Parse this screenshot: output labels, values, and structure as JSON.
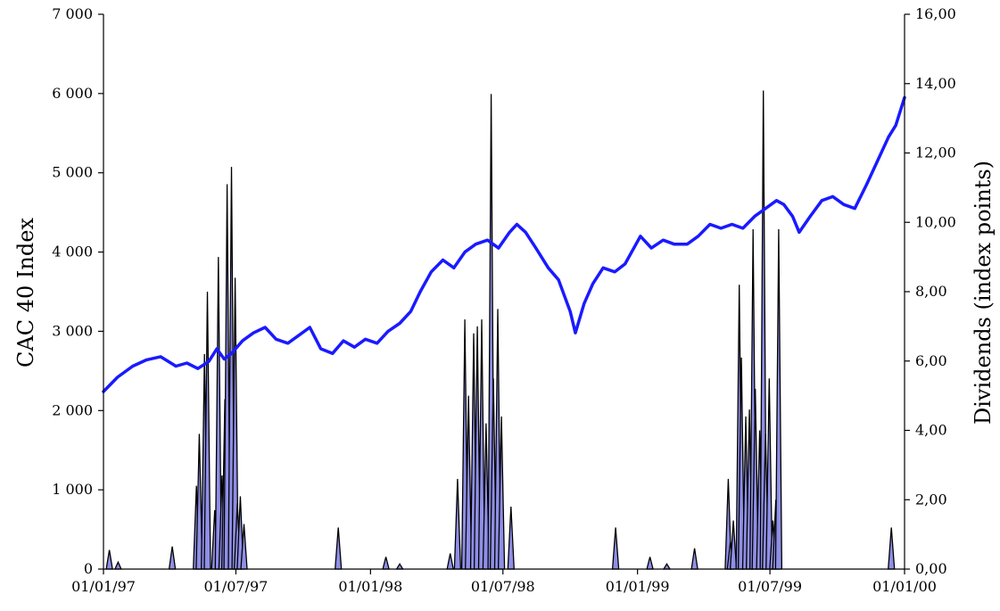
{
  "chart_data": {
    "type": "line",
    "title": "",
    "xlabel": "",
    "ylabel": "CAC 40 Index",
    "y2label": "Dividends (index points)",
    "x_range": [
      "1997-01-01",
      "2000-01-01"
    ],
    "x_ticks": [
      "1997-01-01",
      "1997-07-01",
      "1998-01-01",
      "1998-07-01",
      "1999-01-01",
      "1999-07-01",
      "2000-01-01"
    ],
    "x_tick_labels": [
      "01/01/97",
      "01/07/97",
      "01/01/98",
      "01/07/98",
      "01/01/99",
      "01/07/99",
      "01/01/00"
    ],
    "ylim": [
      0,
      7000
    ],
    "y_tick_labels": [
      "0",
      "1 000",
      "2 000",
      "3 000",
      "4 000",
      "5 000",
      "6 000",
      "7 000"
    ],
    "y2lim": [
      0,
      16
    ],
    "y2_tick_labels": [
      "0,00",
      "2,00",
      "4,00",
      "6,00",
      "8,00",
      "10,00",
      "12,00",
      "14,00",
      "16,00"
    ],
    "grid": false,
    "colors": {
      "index_line": "#1a1aff",
      "dividend_fill": "#8f8fe6",
      "dividend_line": "#000000"
    },
    "series": [
      {
        "axis": "left",
        "style": "line",
        "points": [
          [
            "1997-01-01",
            2240
          ],
          [
            "1997-01-20",
            2420
          ],
          [
            "1997-02-10",
            2560
          ],
          [
            "1997-03-01",
            2640
          ],
          [
            "1997-03-20",
            2680
          ],
          [
            "1997-04-10",
            2560
          ],
          [
            "1997-04-25",
            2600
          ],
          [
            "1997-05-10",
            2530
          ],
          [
            "1997-05-25",
            2620
          ],
          [
            "1997-06-05",
            2780
          ],
          [
            "1997-06-15",
            2650
          ],
          [
            "1997-06-25",
            2720
          ],
          [
            "1997-07-10",
            2880
          ],
          [
            "1997-07-25",
            2980
          ],
          [
            "1997-08-10",
            3050
          ],
          [
            "1997-08-25",
            2900
          ],
          [
            "1997-09-10",
            2850
          ],
          [
            "1997-09-25",
            2950
          ],
          [
            "1997-10-10",
            3050
          ],
          [
            "1997-10-25",
            2780
          ],
          [
            "1997-11-10",
            2720
          ],
          [
            "1997-11-25",
            2880
          ],
          [
            "1997-12-10",
            2800
          ],
          [
            "1997-12-25",
            2900
          ],
          [
            "1998-01-10",
            2850
          ],
          [
            "1998-01-25",
            3000
          ],
          [
            "1998-02-10",
            3100
          ],
          [
            "1998-02-25",
            3250
          ],
          [
            "1998-03-10",
            3500
          ],
          [
            "1998-03-25",
            3750
          ],
          [
            "1998-04-10",
            3900
          ],
          [
            "1998-04-25",
            3800
          ],
          [
            "1998-05-10",
            4000
          ],
          [
            "1998-05-25",
            4100
          ],
          [
            "1998-06-10",
            4150
          ],
          [
            "1998-06-25",
            4050
          ],
          [
            "1998-07-10",
            4250
          ],
          [
            "1998-07-20",
            4350
          ],
          [
            "1998-08-01",
            4250
          ],
          [
            "1998-08-15",
            4050
          ],
          [
            "1998-09-01",
            3800
          ],
          [
            "1998-09-15",
            3650
          ],
          [
            "1998-10-01",
            3250
          ],
          [
            "1998-10-08",
            2980
          ],
          [
            "1998-10-20",
            3350
          ],
          [
            "1998-11-01",
            3600
          ],
          [
            "1998-11-15",
            3800
          ],
          [
            "1998-12-01",
            3750
          ],
          [
            "1998-12-15",
            3850
          ],
          [
            "1999-01-05",
            4200
          ],
          [
            "1999-01-20",
            4050
          ],
          [
            "1999-02-05",
            4150
          ],
          [
            "1999-02-20",
            4100
          ],
          [
            "1999-03-10",
            4100
          ],
          [
            "1999-03-25",
            4200
          ],
          [
            "1999-04-10",
            4350
          ],
          [
            "1999-04-25",
            4300
          ],
          [
            "1999-05-10",
            4350
          ],
          [
            "1999-05-25",
            4300
          ],
          [
            "1999-06-10",
            4450
          ],
          [
            "1999-06-25",
            4550
          ],
          [
            "1999-07-10",
            4650
          ],
          [
            "1999-07-20",
            4600
          ],
          [
            "1999-08-01",
            4450
          ],
          [
            "1999-08-10",
            4250
          ],
          [
            "1999-08-25",
            4450
          ],
          [
            "1999-09-10",
            4650
          ],
          [
            "1999-09-25",
            4700
          ],
          [
            "1999-10-10",
            4600
          ],
          [
            "1999-10-25",
            4550
          ],
          [
            "1999-11-10",
            4850
          ],
          [
            "1999-11-25",
            5150
          ],
          [
            "1999-12-10",
            5450
          ],
          [
            "1999-12-20",
            5600
          ],
          [
            "2000-01-01",
            5950
          ]
        ]
      },
      {
        "axis": "right",
        "style": "filled-spikes",
        "points": [
          [
            "1997-01-09",
            0.55
          ],
          [
            "1997-01-21",
            0.2
          ],
          [
            "1997-04-05",
            0.65
          ],
          [
            "1997-05-08",
            2.4
          ],
          [
            "1997-05-12",
            3.9
          ],
          [
            "1997-05-19",
            6.2
          ],
          [
            "1997-05-23",
            8.0
          ],
          [
            "1997-06-02",
            1.7
          ],
          [
            "1997-06-07",
            9.0
          ],
          [
            "1997-06-12",
            2.7
          ],
          [
            "1997-06-16",
            4.9
          ],
          [
            "1997-06-19",
            11.1
          ],
          [
            "1997-06-25",
            11.6
          ],
          [
            "1997-06-30",
            8.4
          ],
          [
            "1997-07-03",
            1.9
          ],
          [
            "1997-07-07",
            2.1
          ],
          [
            "1997-07-12",
            1.3
          ],
          [
            "1997-11-18",
            1.2
          ],
          [
            "1998-01-22",
            0.35
          ],
          [
            "1998-02-10",
            0.15
          ],
          [
            "1998-04-20",
            0.45
          ],
          [
            "1998-04-30",
            2.6
          ],
          [
            "1998-05-10",
            7.2
          ],
          [
            "1998-05-15",
            5.0
          ],
          [
            "1998-05-22",
            6.8
          ],
          [
            "1998-05-27",
            7.0
          ],
          [
            "1998-06-02",
            7.2
          ],
          [
            "1998-06-08",
            4.2
          ],
          [
            "1998-06-15",
            13.7
          ],
          [
            "1998-06-18",
            5.5
          ],
          [
            "1998-06-24",
            7.5
          ],
          [
            "1998-06-29",
            4.4
          ],
          [
            "1998-07-12",
            1.8
          ],
          [
            "1998-12-02",
            1.2
          ],
          [
            "1999-01-18",
            0.35
          ],
          [
            "1999-02-10",
            0.15
          ],
          [
            "1999-03-20",
            0.6
          ],
          [
            "1999-05-05",
            2.6
          ],
          [
            "1999-05-08",
            0.8
          ],
          [
            "1999-05-12",
            1.4
          ],
          [
            "1999-05-20",
            8.2
          ],
          [
            "1999-05-23",
            6.1
          ],
          [
            "1999-05-29",
            4.4
          ],
          [
            "1999-06-03",
            4.6
          ],
          [
            "1999-06-08",
            9.8
          ],
          [
            "1999-06-11",
            5.2
          ],
          [
            "1999-06-17",
            4.0
          ],
          [
            "1999-06-22",
            13.8
          ],
          [
            "1999-06-25",
            3.9
          ],
          [
            "1999-06-30",
            5.5
          ],
          [
            "1999-07-05",
            1.4
          ],
          [
            "1999-07-09",
            2.0
          ],
          [
            "1999-07-13",
            9.8
          ],
          [
            "1999-12-14",
            1.2
          ]
        ]
      }
    ]
  }
}
